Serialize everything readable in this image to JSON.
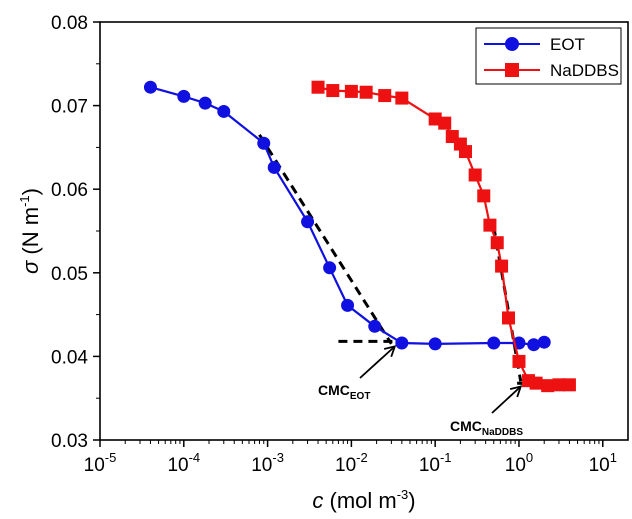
{
  "chart_data": {
    "type": "line",
    "xscale": "log",
    "xlim": [
      1e-05,
      20
    ],
    "ylim": [
      0.03,
      0.08
    ],
    "xlabel": {
      "symbol": "c",
      "unit": "(mol m",
      "exp": "-3",
      "close": ")"
    },
    "ylabel": {
      "symbol": "σ",
      "unit": "(N m",
      "exp": "-1",
      "close": ")"
    },
    "x_ticks": [
      {
        "base": "10",
        "exp": "-5",
        "value": 1e-05
      },
      {
        "base": "10",
        "exp": "-4",
        "value": 0.0001
      },
      {
        "base": "10",
        "exp": "-3",
        "value": 0.001
      },
      {
        "base": "10",
        "exp": "-2",
        "value": 0.01
      },
      {
        "base": "10",
        "exp": "-1",
        "value": 0.1
      },
      {
        "base": "10",
        "exp": "0",
        "value": 1
      },
      {
        "base": "10",
        "exp": "1",
        "value": 10
      }
    ],
    "y_ticks": [
      {
        "label": "0.03",
        "value": 0.03
      },
      {
        "label": "0.04",
        "value": 0.04
      },
      {
        "label": "0.05",
        "value": 0.05
      },
      {
        "label": "0.06",
        "value": 0.06
      },
      {
        "label": "0.07",
        "value": 0.07
      },
      {
        "label": "0.08",
        "value": 0.08
      }
    ],
    "legend_position": "top-right",
    "series": [
      {
        "name": "EOT",
        "color": "#1010e0",
        "marker": "circle",
        "x": [
          4e-05,
          0.0001,
          0.00018,
          0.0003,
          0.0009,
          0.0012,
          0.003,
          0.0055,
          0.009,
          0.019,
          0.04,
          0.1,
          0.5,
          1.0,
          1.5,
          2.0
        ],
        "y": [
          0.0722,
          0.0711,
          0.0703,
          0.0693,
          0.0655,
          0.0626,
          0.0561,
          0.0506,
          0.0461,
          0.0436,
          0.0416,
          0.0415,
          0.0416,
          0.0416,
          0.0414,
          0.0417
        ]
      },
      {
        "name": "NaDDBS",
        "color": "#ee1111",
        "marker": "square",
        "x": [
          0.004,
          0.006,
          0.01,
          0.015,
          0.025,
          0.04,
          0.1,
          0.13,
          0.16,
          0.2,
          0.23,
          0.3,
          0.38,
          0.45,
          0.55,
          0.62,
          0.75,
          1.0,
          1.3,
          1.6,
          2.2,
          3.0,
          4.0
        ],
        "y": [
          0.0722,
          0.0718,
          0.0717,
          0.0716,
          0.0712,
          0.0709,
          0.0684,
          0.0679,
          0.0663,
          0.0654,
          0.0645,
          0.0617,
          0.0592,
          0.0557,
          0.0536,
          0.0508,
          0.0446,
          0.0394,
          0.0371,
          0.0368,
          0.0365,
          0.0366,
          0.0366
        ]
      }
    ],
    "fit_lines": [
      {
        "x": [
          0.0008,
          0.03
        ],
        "y": [
          0.0665,
          0.0415
        ]
      },
      {
        "x": [
          0.007,
          0.04
        ],
        "y": [
          0.0418,
          0.0418
        ]
      },
      {
        "x": [
          0.5,
          1.05
        ],
        "y": [
          0.0555,
          0.037
        ]
      },
      {
        "x": [
          0.95,
          4.0
        ],
        "y": [
          0.0368,
          0.0365
        ]
      }
    ],
    "annotations": [
      {
        "main": "CMC",
        "sub": "EOT",
        "arrow_to": [
          0.033,
          0.0412
        ]
      },
      {
        "main": "CMC",
        "sub": "NaDDBS",
        "arrow_to": [
          1.05,
          0.0364
        ]
      }
    ]
  }
}
